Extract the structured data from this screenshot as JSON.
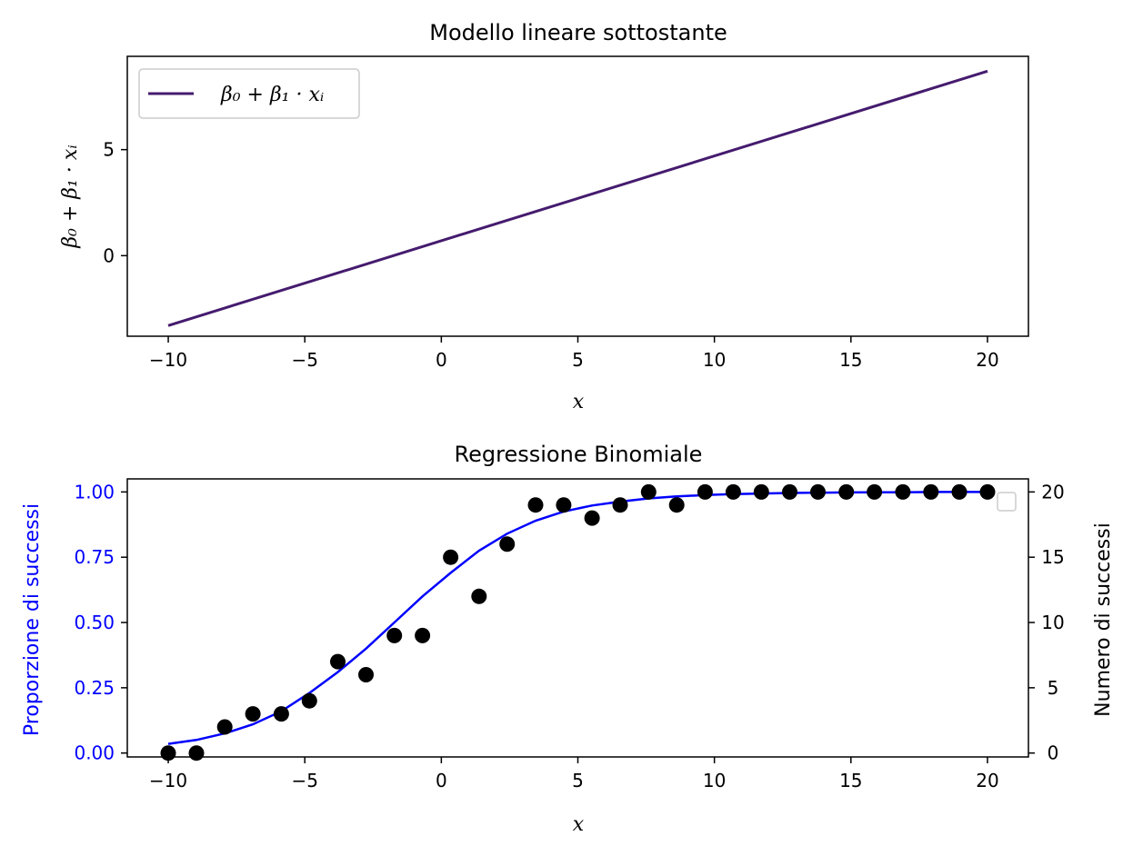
{
  "chart_data": [
    {
      "type": "line",
      "title": "Modello lineare sottostante",
      "xlabel": "x",
      "ylabel": "β₀ + β₁ · xᵢ",
      "xlim": [
        -11.5,
        21.5
      ],
      "ylim": [
        -3.8,
        9.4
      ],
      "xticks": [
        -10,
        -5,
        0,
        5,
        10,
        15,
        20
      ],
      "xtick_labels": [
        "−10",
        "−5",
        "0",
        "5",
        "10",
        "15",
        "20"
      ],
      "yticks": [
        0,
        5
      ],
      "ytick_labels": [
        "0",
        "5"
      ],
      "grid": false,
      "legend_position": "upper-left",
      "series": [
        {
          "name": "β₀ + β₁ · xᵢ",
          "color": "#451b6e",
          "x": [
            -10,
            20
          ],
          "y": [
            -3.3,
            8.7
          ]
        }
      ]
    },
    {
      "type": "scatter",
      "title": "Regressione Binomiale",
      "xlabel": "x",
      "ylabel": "Proporzione di successi",
      "ylabel_right": "Numero di successi",
      "xlim": [
        -11.5,
        21.5
      ],
      "ylim": [
        -0.015,
        1.05
      ],
      "ylim_right": [
        -0.3,
        21.0
      ],
      "xticks": [
        -10,
        -5,
        0,
        5,
        10,
        15,
        20
      ],
      "xtick_labels": [
        "−10",
        "−5",
        "0",
        "5",
        "10",
        "15",
        "20"
      ],
      "yticks": [
        0.0,
        0.25,
        0.5,
        0.75,
        1.0
      ],
      "ytick_labels": [
        "0.00",
        "0.25",
        "0.50",
        "0.75",
        "1.00"
      ],
      "yticks_right": [
        0,
        5,
        10,
        15,
        20
      ],
      "ytick_labels_right": [
        "0",
        "5",
        "10",
        "15",
        "20"
      ],
      "left_axis_color": "#0000ff",
      "grid": false,
      "legend_position": "upper-right (empty)",
      "series": [
        {
          "kind": "line",
          "axis": "left",
          "color": "#0000ff",
          "x": [
            -10,
            -8.97,
            -7.93,
            -6.9,
            -5.86,
            -4.83,
            -3.79,
            -2.76,
            -1.72,
            -0.69,
            0.34,
            1.38,
            2.41,
            3.45,
            4.48,
            5.52,
            6.55,
            7.59,
            8.62,
            9.66,
            10.69,
            11.72,
            12.76,
            13.79,
            14.83,
            15.86,
            16.9,
            17.93,
            18.97,
            20
          ],
          "y": [
            0.035,
            0.05,
            0.075,
            0.11,
            0.16,
            0.23,
            0.31,
            0.4,
            0.5,
            0.6,
            0.69,
            0.775,
            0.84,
            0.89,
            0.925,
            0.948,
            0.963,
            0.975,
            0.983,
            0.988,
            0.992,
            0.994,
            0.996,
            0.997,
            0.998,
            0.999,
            0.999,
            1.0,
            1.0,
            1.0
          ]
        },
        {
          "kind": "scatter",
          "axis": "right",
          "color": "#000000",
          "x": [
            -10,
            -8.97,
            -7.93,
            -6.9,
            -5.86,
            -4.83,
            -3.79,
            -2.76,
            -1.72,
            -0.69,
            0.34,
            1.38,
            2.41,
            3.45,
            4.48,
            5.52,
            6.55,
            7.59,
            8.62,
            9.66,
            10.69,
            11.72,
            12.76,
            13.79,
            14.83,
            15.86,
            16.9,
            17.93,
            18.97,
            20
          ],
          "y": [
            0,
            0,
            2,
            3,
            3,
            4,
            7,
            6,
            9,
            9,
            15,
            12,
            16,
            19,
            19,
            18,
            19,
            20,
            19,
            20,
            20,
            20,
            20,
            20,
            20,
            20,
            20,
            20,
            20,
            20
          ]
        }
      ]
    }
  ]
}
